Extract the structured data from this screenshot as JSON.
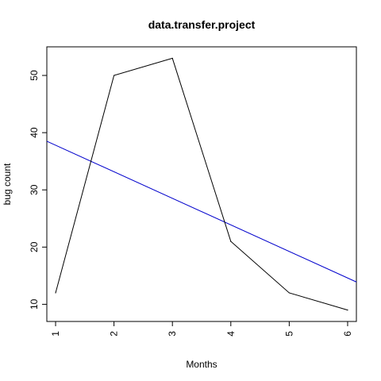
{
  "chart_data": {
    "type": "line",
    "title": "data.transfer.project",
    "xlabel": "Months",
    "ylabel": "bug count",
    "x": [
      1,
      2,
      3,
      4,
      5,
      6
    ],
    "series": [
      {
        "values": [
          12,
          50,
          53,
          21,
          12,
          9
        ],
        "color": "#000000"
      }
    ],
    "trend_line": {
      "x": [
        0.85,
        6.15
      ],
      "y": [
        38.5,
        13.9
      ],
      "color": "#0000cc"
    },
    "xlim": [
      0.85,
      6.15
    ],
    "ylim": [
      7.0,
      55.0
    ],
    "xticks": [
      1,
      2,
      3,
      4,
      5,
      6
    ],
    "yticks": [
      10,
      20,
      30,
      40,
      50
    ],
    "grid": false,
    "legend": "none"
  }
}
